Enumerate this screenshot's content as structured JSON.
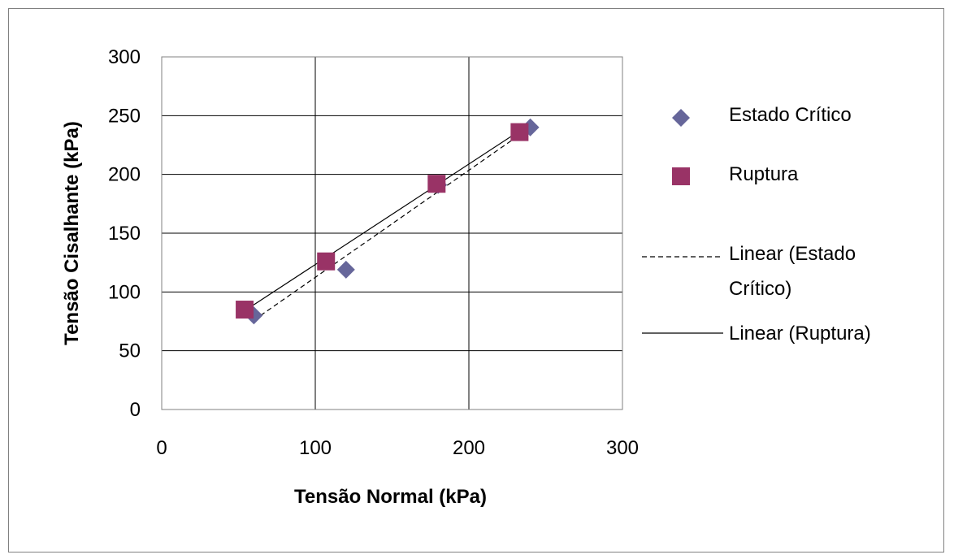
{
  "chart_data": {
    "type": "scatter",
    "title": "",
    "xlabel": "Tensão Normal (kPa)",
    "ylabel": "Tensão Cisalhante (kPa)",
    "xlim": [
      0,
      300
    ],
    "ylim": [
      0,
      300
    ],
    "x_ticks": [
      "0",
      "100",
      "200",
      "300"
    ],
    "y_ticks": [
      "0",
      "50",
      "100",
      "150",
      "200",
      "250",
      "300"
    ],
    "grid": {
      "x": true,
      "y": true
    },
    "legend_position": "right",
    "series": [
      {
        "name": "Estado Crítico",
        "marker": "diamond",
        "color": "#66669A",
        "points": [
          [
            60,
            80
          ],
          [
            120,
            119
          ],
          [
            180,
            191
          ],
          [
            240,
            240
          ]
        ]
      },
      {
        "name": "Ruptura",
        "marker": "square",
        "color": "#993366",
        "points": [
          [
            54,
            85
          ],
          [
            107,
            126
          ],
          [
            179,
            192
          ],
          [
            233,
            236
          ]
        ]
      }
    ],
    "trendlines": [
      {
        "name": "Linear (Estado Crítico)",
        "series": "Estado Crítico",
        "style": "dashed",
        "color": "#000000",
        "endpoints": [
          [
            60,
            76
          ],
          [
            240,
            240
          ]
        ]
      },
      {
        "name": "Linear (Ruptura)",
        "series": "Ruptura",
        "style": "solid",
        "color": "#000000",
        "endpoints": [
          [
            54,
            84
          ],
          [
            233,
            237
          ]
        ]
      }
    ]
  }
}
